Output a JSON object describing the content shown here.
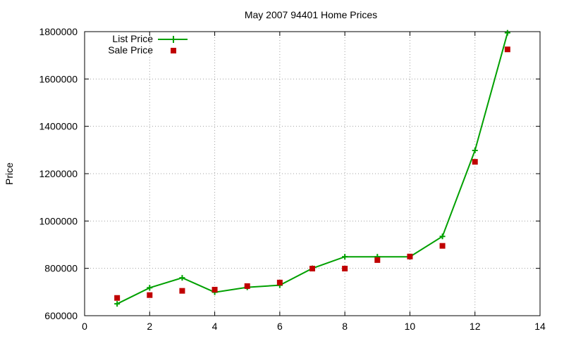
{
  "chart_data": {
    "type": "line",
    "title": "May 2007 94401 Home Prices",
    "xlabel": "",
    "ylabel": "Price",
    "xlim": [
      0,
      14
    ],
    "ylim": [
      600000,
      1800000
    ],
    "xticks": [
      0,
      2,
      4,
      6,
      8,
      10,
      12,
      14
    ],
    "yticks": [
      600000,
      800000,
      1000000,
      1200000,
      1400000,
      1600000,
      1800000
    ],
    "grid": true,
    "legend_position": "top-left",
    "series": [
      {
        "name": "List Price",
        "style": "linespoints",
        "marker": "plus",
        "color": "#00a000",
        "points": [
          [
            1,
            650000
          ],
          [
            2,
            718000
          ],
          [
            3,
            760000
          ],
          [
            4,
            699000
          ],
          [
            5,
            720000
          ],
          [
            6,
            729000
          ],
          [
            7,
            800000
          ],
          [
            8,
            849000
          ],
          [
            9,
            849000
          ],
          [
            10,
            849000
          ],
          [
            11,
            935000
          ],
          [
            12,
            1298000
          ],
          [
            13,
            1795000
          ]
        ]
      },
      {
        "name": "Sale Price",
        "style": "points",
        "marker": "square",
        "color": "#c00000",
        "points": [
          [
            1,
            675000
          ],
          [
            2,
            687000
          ],
          [
            3,
            705000
          ],
          [
            4,
            710000
          ],
          [
            5,
            725000
          ],
          [
            6,
            740000
          ],
          [
            7,
            799000
          ],
          [
            8,
            799000
          ],
          [
            9,
            835000
          ],
          [
            10,
            850000
          ],
          [
            11,
            895000
          ],
          [
            12,
            1250000
          ],
          [
            13,
            1725000
          ]
        ]
      }
    ]
  }
}
